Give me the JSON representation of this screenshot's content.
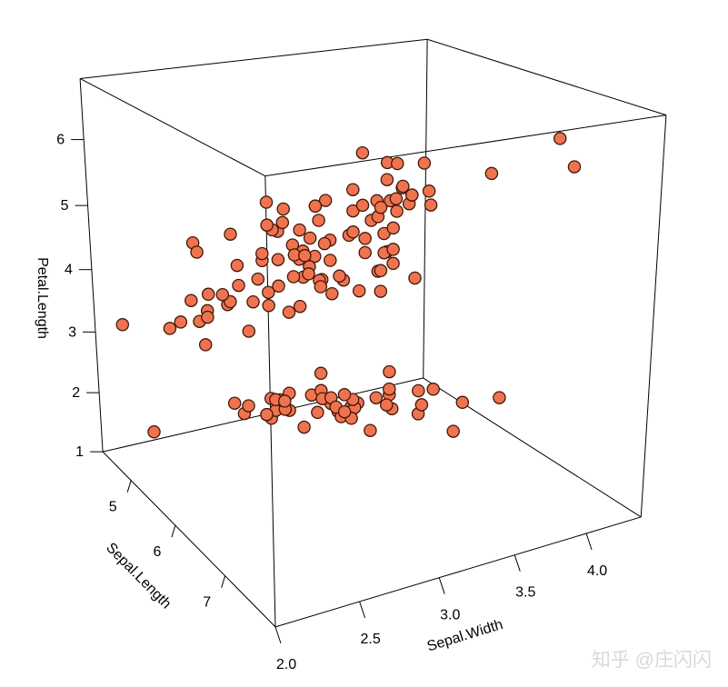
{
  "chart_data": {
    "type": "scatter",
    "projection": "3d",
    "title": "",
    "xlabel": "Sepal.Length",
    "ylabel": "Sepal.Width",
    "zlabel": "Petal.Length",
    "x_range": [
      4.3,
      7.9
    ],
    "y_range": [
      2.0,
      4.4
    ],
    "z_range": [
      1.0,
      6.9
    ],
    "x_ticks": {
      "values": [
        5,
        6,
        7
      ],
      "labels": [
        "5",
        "6",
        "7"
      ]
    },
    "y_ticks": {
      "values": [
        2.0,
        2.5,
        3.0,
        3.5,
        4.0
      ],
      "labels": [
        "2.0",
        "2.5",
        "3.0",
        "3.5",
        "4.0"
      ]
    },
    "z_ticks": {
      "values": [
        1,
        2,
        3,
        4,
        5,
        6
      ],
      "labels": [
        "1",
        "2",
        "3",
        "4",
        "5",
        "6"
      ]
    },
    "grid": false,
    "legend": "none",
    "box_color": "#000000",
    "point_style": {
      "fill": "#F07350",
      "stroke": "#401808",
      "radius": 6.6,
      "stroke_width": 1.3
    },
    "points": [
      [
        5.1,
        3.5,
        1.4
      ],
      [
        4.9,
        3.0,
        1.4
      ],
      [
        4.7,
        3.2,
        1.3
      ],
      [
        4.6,
        3.1,
        1.5
      ],
      [
        5.0,
        3.6,
        1.4
      ],
      [
        5.4,
        3.9,
        1.7
      ],
      [
        4.6,
        3.4,
        1.4
      ],
      [
        5.0,
        3.4,
        1.5
      ],
      [
        4.4,
        2.9,
        1.4
      ],
      [
        4.9,
        3.1,
        1.5
      ],
      [
        5.4,
        3.7,
        1.5
      ],
      [
        4.8,
        3.4,
        1.6
      ],
      [
        4.8,
        3.0,
        1.4
      ],
      [
        4.3,
        3.0,
        1.1
      ],
      [
        5.8,
        4.0,
        1.2
      ],
      [
        5.7,
        4.4,
        1.5
      ],
      [
        5.4,
        3.9,
        1.3
      ],
      [
        5.1,
        3.5,
        1.4
      ],
      [
        5.7,
        3.8,
        1.7
      ],
      [
        5.1,
        3.8,
        1.5
      ],
      [
        5.4,
        3.4,
        1.7
      ],
      [
        5.1,
        3.7,
        1.5
      ],
      [
        4.6,
        3.6,
        1.0
      ],
      [
        5.1,
        3.3,
        1.7
      ],
      [
        4.8,
        3.4,
        1.9
      ],
      [
        5.0,
        3.0,
        1.6
      ],
      [
        5.0,
        3.4,
        1.6
      ],
      [
        5.2,
        3.5,
        1.5
      ],
      [
        5.2,
        3.4,
        1.4
      ],
      [
        4.7,
        3.2,
        1.6
      ],
      [
        4.8,
        3.1,
        1.6
      ],
      [
        5.4,
        3.4,
        1.5
      ],
      [
        5.2,
        4.1,
        1.5
      ],
      [
        5.5,
        4.2,
        1.4
      ],
      [
        4.9,
        3.1,
        1.5
      ],
      [
        5.0,
        3.2,
        1.2
      ],
      [
        5.5,
        3.5,
        1.3
      ],
      [
        4.9,
        3.6,
        1.4
      ],
      [
        4.4,
        3.0,
        1.3
      ],
      [
        5.1,
        3.4,
        1.5
      ],
      [
        5.0,
        3.5,
        1.3
      ],
      [
        4.5,
        2.3,
        1.3
      ],
      [
        4.4,
        3.2,
        1.3
      ],
      [
        5.0,
        3.5,
        1.6
      ],
      [
        5.1,
        3.8,
        1.9
      ],
      [
        4.8,
        3.0,
        1.4
      ],
      [
        5.1,
        3.8,
        1.6
      ],
      [
        4.6,
        3.2,
        1.4
      ],
      [
        5.3,
        3.7,
        1.5
      ],
      [
        5.0,
        3.3,
        1.4
      ],
      [
        7.0,
        3.2,
        4.7
      ],
      [
        6.4,
        3.2,
        4.5
      ],
      [
        6.9,
        3.1,
        4.9
      ],
      [
        5.5,
        2.3,
        4.0
      ],
      [
        6.5,
        2.8,
        4.6
      ],
      [
        5.7,
        2.8,
        4.5
      ],
      [
        6.3,
        3.3,
        4.7
      ],
      [
        4.9,
        2.4,
        3.3
      ],
      [
        6.6,
        2.9,
        4.6
      ],
      [
        5.2,
        2.7,
        3.9
      ],
      [
        5.0,
        2.0,
        3.5
      ],
      [
        5.9,
        3.0,
        4.2
      ],
      [
        6.0,
        2.2,
        4.0
      ],
      [
        6.1,
        2.9,
        4.7
      ],
      [
        5.6,
        2.9,
        3.6
      ],
      [
        6.7,
        3.1,
        4.4
      ],
      [
        5.6,
        3.0,
        4.5
      ],
      [
        5.8,
        2.7,
        4.1
      ],
      [
        6.2,
        2.2,
        4.5
      ],
      [
        5.6,
        2.5,
        3.9
      ],
      [
        5.9,
        3.2,
        4.8
      ],
      [
        6.1,
        2.8,
        4.0
      ],
      [
        6.3,
        2.5,
        4.9
      ],
      [
        6.1,
        2.8,
        4.7
      ],
      [
        6.4,
        2.9,
        4.3
      ],
      [
        6.6,
        3.0,
        4.4
      ],
      [
        6.8,
        2.8,
        4.8
      ],
      [
        6.7,
        3.0,
        5.0
      ],
      [
        6.0,
        2.9,
        4.5
      ],
      [
        5.7,
        2.6,
        3.5
      ],
      [
        5.5,
        2.4,
        3.8
      ],
      [
        5.5,
        2.4,
        3.7
      ],
      [
        5.8,
        2.7,
        3.9
      ],
      [
        6.0,
        2.7,
        5.1
      ],
      [
        5.4,
        3.0,
        4.5
      ],
      [
        6.0,
        3.4,
        4.5
      ],
      [
        6.7,
        3.1,
        4.7
      ],
      [
        6.3,
        2.3,
        4.4
      ],
      [
        5.6,
        3.0,
        4.1
      ],
      [
        5.5,
        2.5,
        4.0
      ],
      [
        5.5,
        2.6,
        4.4
      ],
      [
        6.1,
        3.0,
        4.6
      ],
      [
        5.8,
        2.6,
        4.0
      ],
      [
        5.0,
        2.3,
        3.3
      ],
      [
        5.6,
        2.7,
        4.2
      ],
      [
        5.7,
        3.0,
        4.2
      ],
      [
        5.7,
        2.9,
        4.2
      ],
      [
        6.2,
        2.9,
        4.3
      ],
      [
        5.1,
        2.5,
        3.0
      ],
      [
        5.7,
        2.8,
        4.1
      ],
      [
        6.3,
        3.3,
        6.0
      ],
      [
        5.8,
        2.7,
        5.1
      ],
      [
        7.1,
        3.0,
        5.9
      ],
      [
        6.3,
        2.9,
        5.6
      ],
      [
        6.5,
        3.0,
        5.8
      ],
      [
        7.6,
        3.0,
        6.6
      ],
      [
        4.9,
        2.5,
        4.5
      ],
      [
        7.3,
        2.9,
        6.3
      ],
      [
        6.7,
        2.5,
        5.8
      ],
      [
        7.2,
        3.6,
        6.1
      ],
      [
        6.5,
        3.2,
        5.1
      ],
      [
        6.4,
        2.7,
        5.3
      ],
      [
        6.8,
        3.0,
        5.5
      ],
      [
        5.7,
        2.5,
        5.0
      ],
      [
        5.8,
        2.8,
        5.1
      ],
      [
        6.4,
        3.2,
        5.3
      ],
      [
        6.5,
        3.0,
        5.5
      ],
      [
        7.7,
        3.8,
        6.7
      ],
      [
        7.7,
        2.6,
        6.9
      ],
      [
        6.0,
        2.2,
        5.0
      ],
      [
        6.9,
        3.2,
        5.7
      ],
      [
        5.6,
        2.8,
        4.9
      ],
      [
        7.7,
        2.8,
        6.7
      ],
      [
        6.3,
        2.7,
        4.9
      ],
      [
        6.7,
        3.3,
        5.7
      ],
      [
        7.2,
        3.2,
        6.0
      ],
      [
        6.2,
        2.8,
        4.8
      ],
      [
        6.1,
        3.0,
        4.9
      ],
      [
        6.4,
        2.8,
        5.6
      ],
      [
        7.2,
        3.0,
        5.8
      ],
      [
        7.4,
        2.8,
        6.1
      ],
      [
        7.9,
        3.8,
        6.4
      ],
      [
        6.4,
        2.8,
        5.6
      ],
      [
        6.3,
        2.8,
        5.1
      ],
      [
        6.1,
        2.6,
        5.6
      ],
      [
        7.7,
        3.0,
        6.1
      ],
      [
        6.3,
        3.4,
        5.6
      ],
      [
        6.4,
        3.1,
        5.5
      ],
      [
        6.0,
        3.0,
        4.8
      ],
      [
        6.9,
        3.1,
        5.4
      ],
      [
        6.7,
        3.1,
        5.6
      ],
      [
        6.9,
        3.1,
        5.1
      ],
      [
        5.8,
        2.7,
        5.1
      ],
      [
        6.8,
        3.2,
        5.9
      ],
      [
        6.7,
        3.3,
        5.7
      ],
      [
        6.7,
        3.0,
        5.2
      ],
      [
        6.3,
        2.5,
        5.0
      ],
      [
        6.5,
        3.0,
        5.2
      ],
      [
        6.2,
        3.4,
        5.4
      ],
      [
        5.9,
        3.0,
        5.1
      ]
    ]
  },
  "watermark": {
    "text": "知乎 @庄闪闪",
    "color": "#d9d9d9"
  }
}
